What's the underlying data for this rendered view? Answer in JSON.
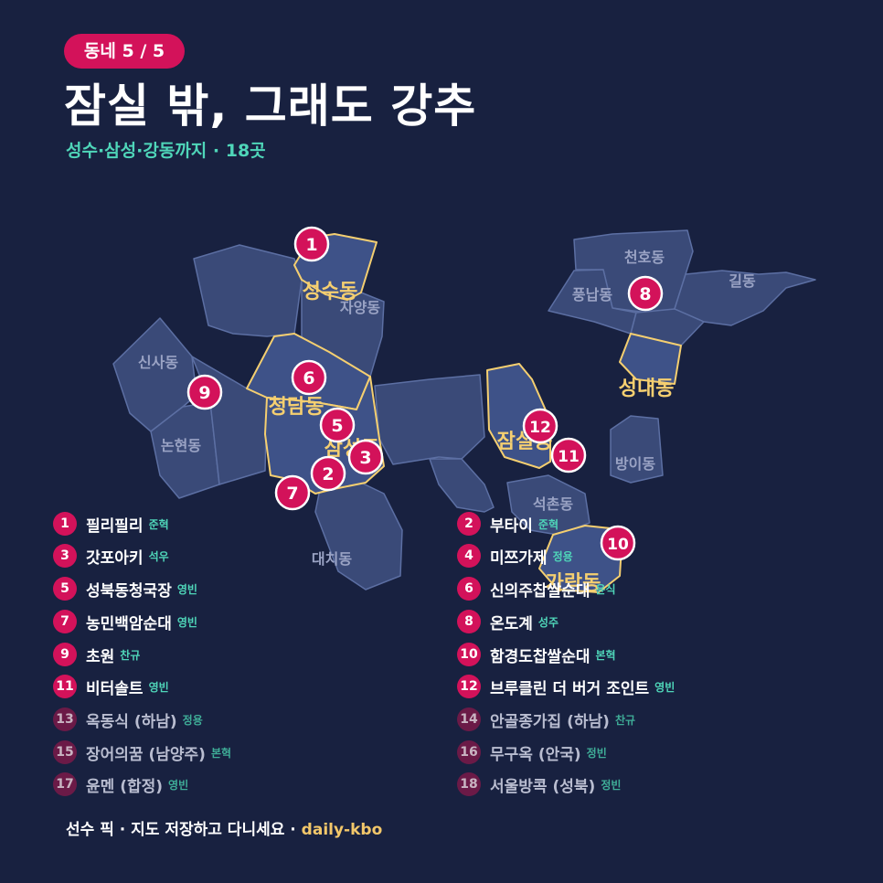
{
  "header": {
    "badge": "동네 5 / 5",
    "title": "잠실 밖, 그래도 강추",
    "subtitle": "성수·삼성·강동까지 · 18곳"
  },
  "map": {
    "colors": {
      "district_fill": "#3a4a78",
      "district_stroke": "#5c6fa3",
      "highlight_stroke": "#f5cf70",
      "highlight_label": "#f5cf70",
      "dim_label": "#9aa3c4",
      "marker": "#d3125a"
    },
    "highlight_labels": [
      "성수동",
      "청담동",
      "삼성동",
      "잠실동",
      "성내동",
      "가락동"
    ],
    "dim_labels": [
      "자양동",
      "신사동",
      "논현동",
      "대치동",
      "천호동",
      "풍납동",
      "길동",
      "방이동",
      "석촌동"
    ],
    "markers": [
      "1",
      "2",
      "5",
      "6",
      "7",
      "3",
      "9",
      "8",
      "10",
      "11",
      "12"
    ]
  },
  "list": {
    "left": [
      {
        "num": "1",
        "name": "필리필리",
        "who": "준혁",
        "dim": false
      },
      {
        "num": "3",
        "name": "갓포아키",
        "who": "석우",
        "dim": false
      },
      {
        "num": "5",
        "name": "성북동청국장",
        "who": "영빈",
        "dim": false
      },
      {
        "num": "7",
        "name": "농민백암순대",
        "who": "영빈",
        "dim": false
      },
      {
        "num": "9",
        "name": "초원",
        "who": "찬규",
        "dim": false
      },
      {
        "num": "11",
        "name": "비터솔트",
        "who": "영빈",
        "dim": false
      },
      {
        "num": "13",
        "name": "옥동식 (하남)",
        "who": "정용",
        "dim": true
      },
      {
        "num": "15",
        "name": "장어의꿈 (남양주)",
        "who": "본혁",
        "dim": true
      },
      {
        "num": "17",
        "name": "윤멘 (합정)",
        "who": "영빈",
        "dim": true
      }
    ],
    "right": [
      {
        "num": "2",
        "name": "부타이",
        "who": "준혁",
        "dim": false
      },
      {
        "num": "4",
        "name": "미쯔가제",
        "who": "정용",
        "dim": false
      },
      {
        "num": "6",
        "name": "신의주찹쌀순대",
        "who": "윤식",
        "dim": false
      },
      {
        "num": "8",
        "name": "온도계",
        "who": "성주",
        "dim": false
      },
      {
        "num": "10",
        "name": "함경도찹쌀순대",
        "who": "본혁",
        "dim": false
      },
      {
        "num": "12",
        "name": "브루클린 더 버거 조인트",
        "who": "영빈",
        "dim": false
      },
      {
        "num": "14",
        "name": "안골종가집 (하남)",
        "who": "찬규",
        "dim": true
      },
      {
        "num": "16",
        "name": "무구옥 (안국)",
        "who": "정빈",
        "dim": true
      },
      {
        "num": "18",
        "name": "서울방콕 (성북)",
        "who": "정빈",
        "dim": true
      }
    ]
  },
  "footer": {
    "text": "선수 픽 · 지도 저장하고 다니세요 · ",
    "brand": "daily-kbo"
  }
}
